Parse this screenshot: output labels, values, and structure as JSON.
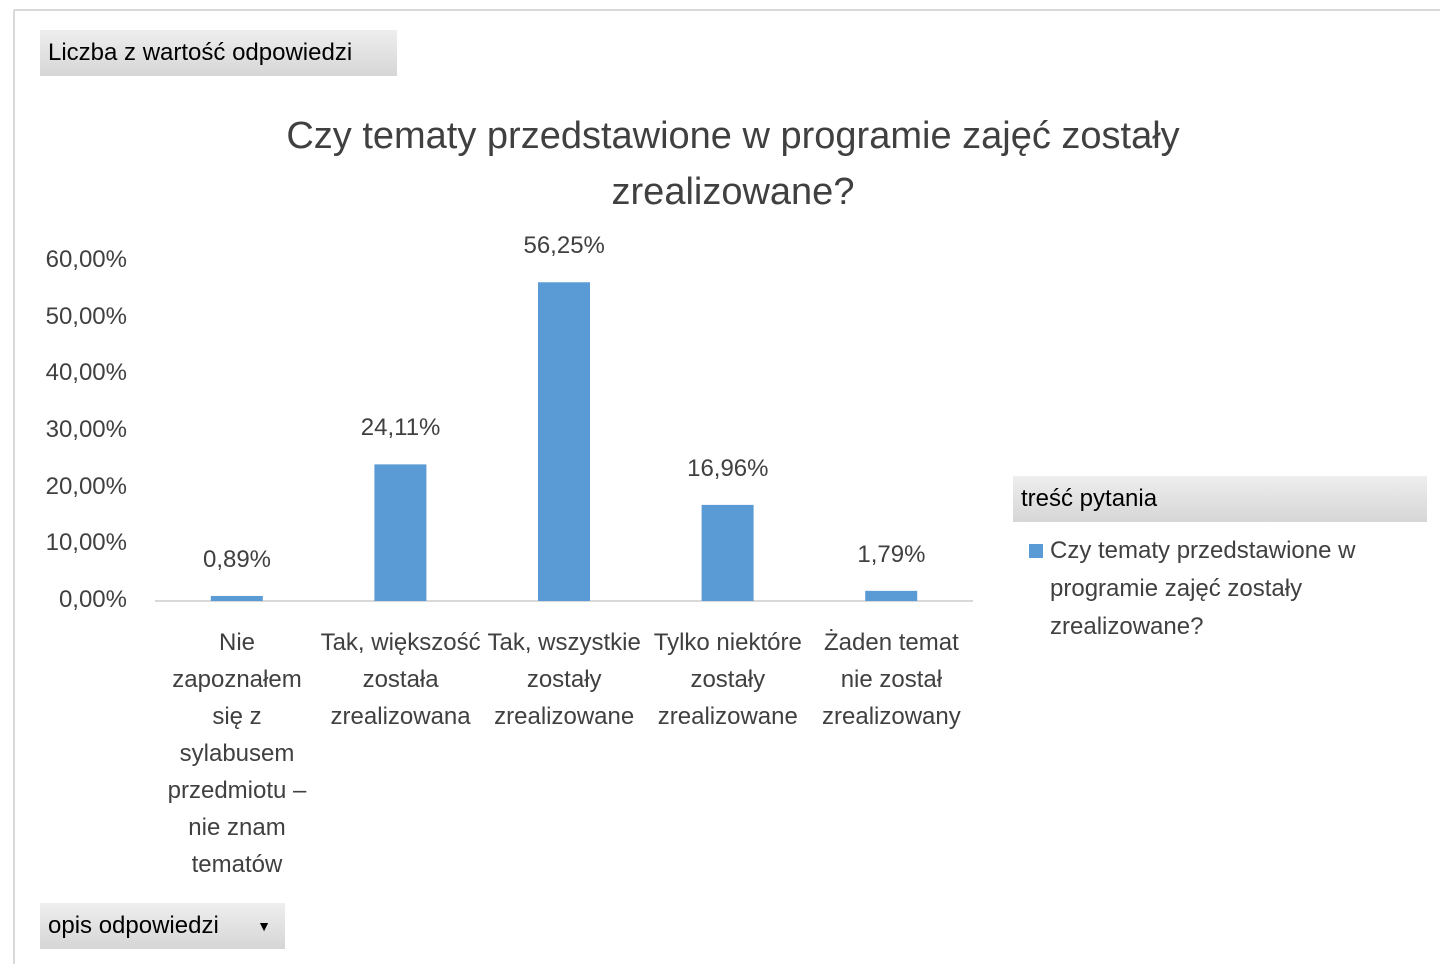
{
  "chart_data": {
    "type": "bar",
    "value_field": "Liczba z wartość odpowiedzi",
    "title": "Czy  tematy przedstawione w programie zajęć zostały zrealizowane?",
    "categories": [
      "Nie zapoznałem się z sylabusem przedmiotu – nie znam tematów",
      "Tak, większość została zrealizowana",
      "Tak, wszystkie zostały zrealizowane",
      "Tylko niektóre zostały zrealizowane",
      "Żaden temat nie został zrealizowany"
    ],
    "series": [
      {
        "name": "Czy  tematy przedstawione w programie zajęć zostały zrealizowane?",
        "color": "#5b9bd5",
        "values": [
          0.89,
          24.11,
          56.25,
          16.96,
          1.79
        ],
        "value_labels": [
          "0,89%",
          "24,11%",
          "56,25%",
          "16,96%",
          "1,79%"
        ]
      }
    ],
    "ylim": [
      0,
      60
    ],
    "yticks": [
      {
        "value": 0,
        "label": "0,00%"
      },
      {
        "value": 10,
        "label": "10,00%"
      },
      {
        "value": 20,
        "label": "20,00%"
      },
      {
        "value": 30,
        "label": "30,00%"
      },
      {
        "value": 40,
        "label": "40,00%"
      },
      {
        "value": 50,
        "label": "50,00%"
      },
      {
        "value": 60,
        "label": "60,00%"
      }
    ],
    "grid": false,
    "legend_field": "treść pytania",
    "axis_field": "opis odpowiedzi"
  }
}
